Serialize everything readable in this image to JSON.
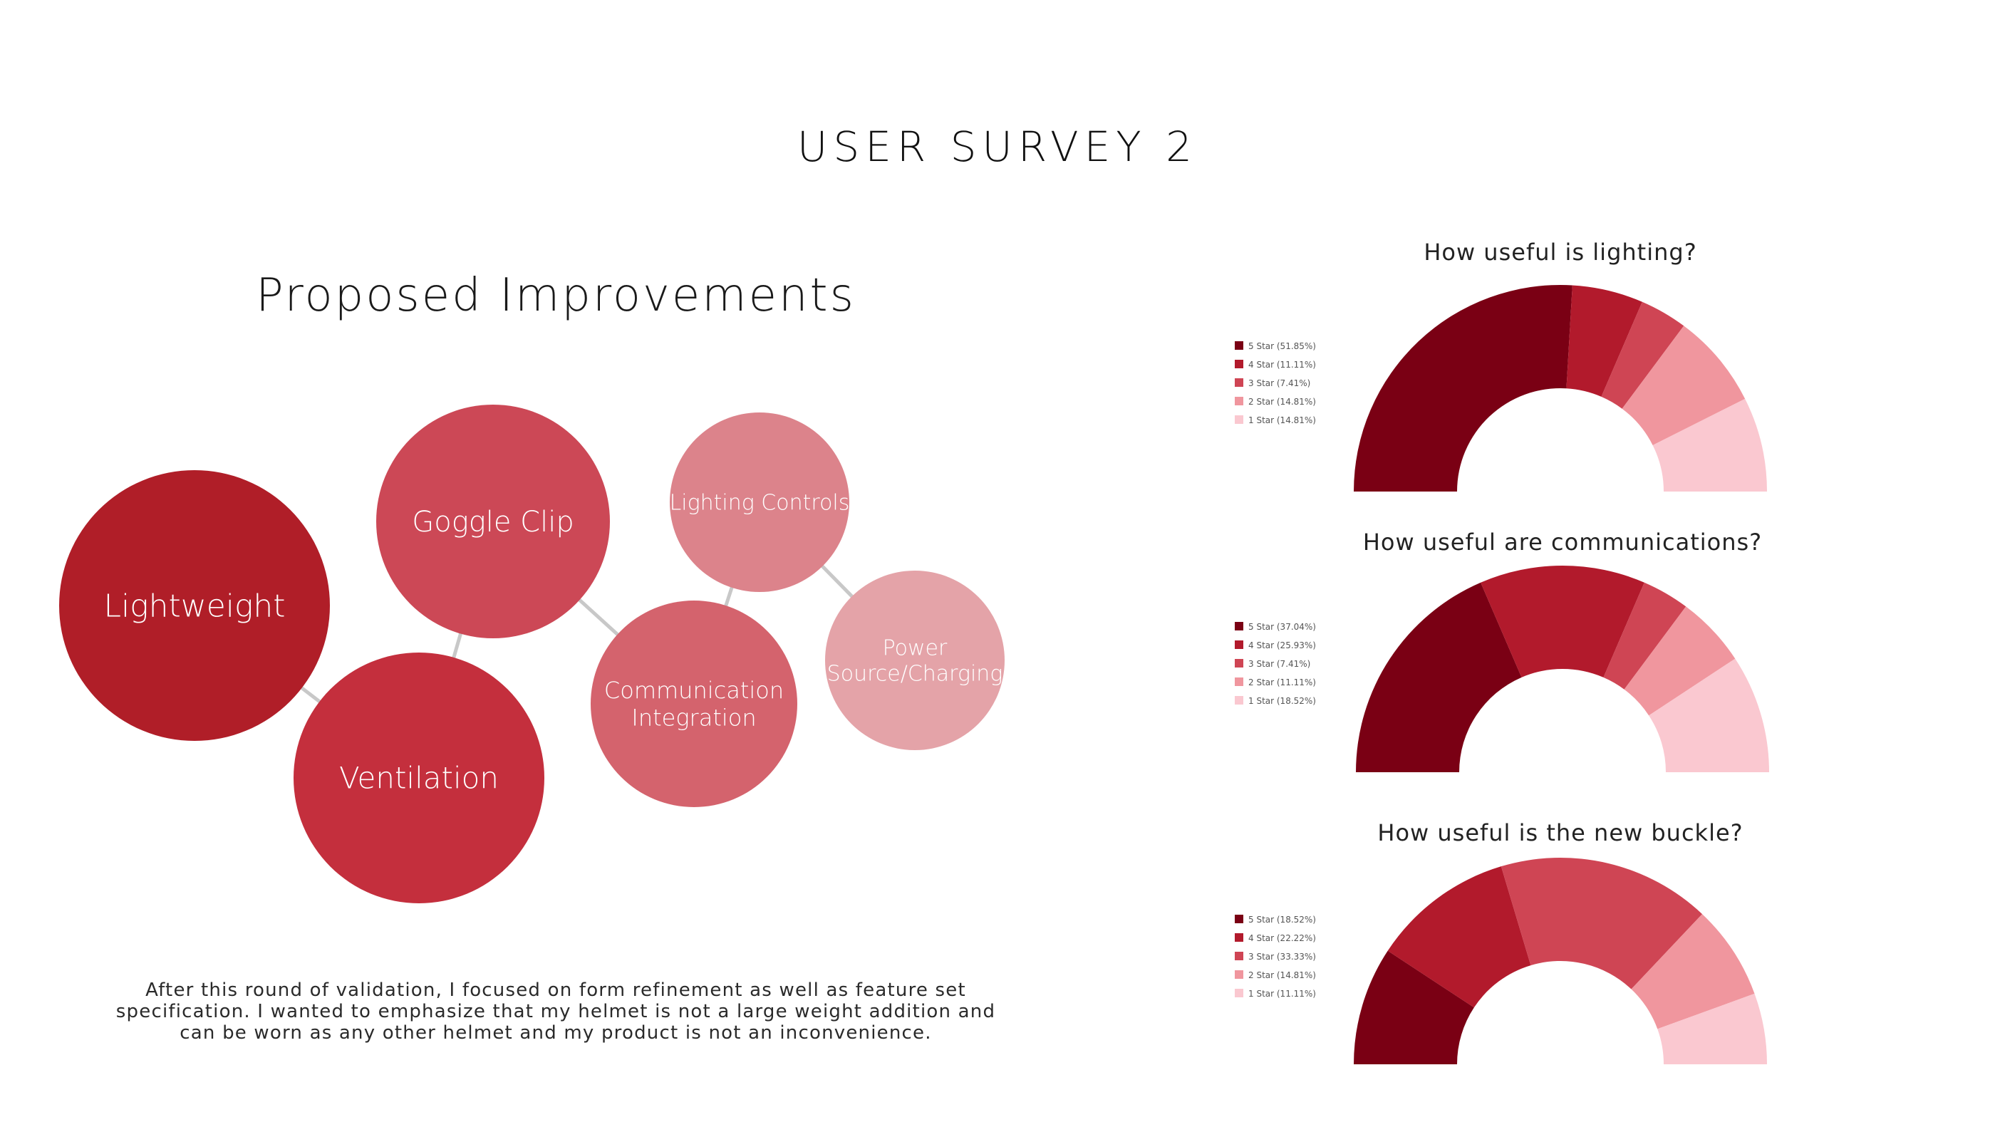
{
  "page_title": "USER SURVEY 2",
  "section_title": "Proposed Improvements",
  "description": "After this round of validation, I focused on form refinement as well as feature set specification. I wanted to emphasize that my helmet is not a large weight addition and can be worn as any other helmet and my product is not an inconvenience.",
  "bubbles": [
    {
      "id": "lightweight",
      "lines": [
        "Lightweight"
      ],
      "color": "#b01e28"
    },
    {
      "id": "ventilation",
      "lines": [
        "Ventilation"
      ],
      "color": "#c42f3d"
    },
    {
      "id": "goggle-clip",
      "lines": [
        "Goggle Clip"
      ],
      "color": "#cc4856"
    },
    {
      "id": "communication-integration",
      "lines": [
        "Communication",
        "Integration"
      ],
      "color": "#d4636d"
    },
    {
      "id": "lighting-controls",
      "lines": [
        "Lighting Controls"
      ],
      "color": "#dc838b"
    },
    {
      "id": "power-source-charging",
      "lines": [
        "Power",
        "Source/Charging"
      ],
      "color": "#e4a3a8"
    }
  ],
  "star_colors": [
    "#7a0014",
    "#b21a2c",
    "#cf4554",
    "#f0969e",
    "#fac8d0"
  ],
  "chart_data": [
    {
      "type": "pie",
      "subtype": "half-donut",
      "title": "How useful is lighting?",
      "categories": [
        "5 Star",
        "4 Star",
        "3 Star",
        "2 Star",
        "1 Star"
      ],
      "values": [
        51.85,
        11.11,
        7.41,
        14.81,
        14.81
      ],
      "legend": [
        "5 Star (51.85%)",
        "4 Star (11.11%)",
        "3 Star (7.41%)",
        "2 Star (14.81%)",
        "1 Star (14.81%)"
      ],
      "legend_position": "left"
    },
    {
      "type": "pie",
      "subtype": "half-donut",
      "title": "How useful are communications?",
      "categories": [
        "5 Star",
        "4 Star",
        "3 Star",
        "2 Star",
        "1 Star"
      ],
      "values": [
        37.04,
        25.93,
        7.41,
        11.11,
        18.52
      ],
      "legend": [
        "5 Star (37.04%)",
        "4 Star (25.93%)",
        "3 Star (7.41%)",
        "2 Star (11.11%)",
        "1 Star (18.52%)"
      ],
      "legend_position": "left"
    },
    {
      "type": "pie",
      "subtype": "half-donut",
      "title": "How useful is the new buckle?",
      "categories": [
        "5 Star",
        "4 Star",
        "3 Star",
        "2 Star",
        "1 Star"
      ],
      "values": [
        18.52,
        22.22,
        33.33,
        14.81,
        11.11
      ],
      "legend": [
        "5 Star (18.52%)",
        "4 Star (22.22%)",
        "3 Star (33.33%)",
        "2 Star (14.81%)",
        "1 Star (11.11%)"
      ],
      "legend_position": "left"
    }
  ]
}
